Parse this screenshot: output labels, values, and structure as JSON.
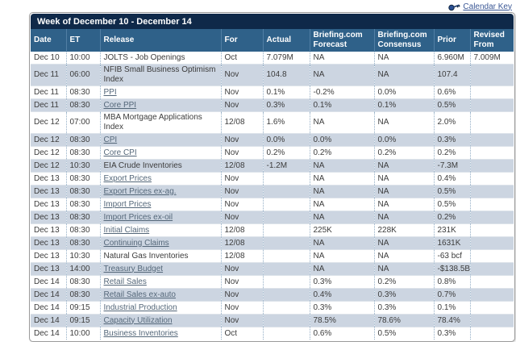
{
  "calendar_key": {
    "label": "Calendar Key"
  },
  "week_title": "Week of December 10 - December 14",
  "columns": [
    "Date",
    "ET",
    "Release",
    "For",
    "Actual",
    "Briefing.com Forecast",
    "Briefing.com Consensus",
    "Prior",
    "Revised From"
  ],
  "colors": {
    "title_bar_bg": "#0f2949",
    "header_bg": "#2f6189",
    "alt_row_bg": "#ccd5e1",
    "body_text": "#3c3c3c",
    "table_link": "#546779",
    "calendar_key_link": "#3a5795"
  },
  "rows": [
    {
      "date": "Dec 10",
      "et": "10:00",
      "release": "JOLTS - Job Openings",
      "link": false,
      "for": "Oct",
      "actual": "7.079M",
      "forecast": "NA",
      "consensus": "NA",
      "prior": "6.960M",
      "revised": "7.009M"
    },
    {
      "date": "Dec 11",
      "et": "06:00",
      "release": "NFIB Small Business Optimism Index",
      "link": false,
      "for": "Nov",
      "actual": "104.8",
      "forecast": "NA",
      "consensus": "NA",
      "prior": "107.4",
      "revised": ""
    },
    {
      "date": "Dec 11",
      "et": "08:30",
      "release": "PPI",
      "link": true,
      "for": "Nov",
      "actual": "0.1%",
      "forecast": "-0.2%",
      "consensus": "0.0%",
      "prior": "0.6%",
      "revised": ""
    },
    {
      "date": "Dec 11",
      "et": "08:30",
      "release": "Core PPI",
      "link": true,
      "for": "Nov",
      "actual": "0.3%",
      "forecast": "0.1%",
      "consensus": "0.1%",
      "prior": "0.5%",
      "revised": ""
    },
    {
      "date": "Dec 12",
      "et": "07:00",
      "release": "MBA Mortgage Applications Index",
      "link": false,
      "for": "12/08",
      "actual": "1.6%",
      "forecast": "NA",
      "consensus": "NA",
      "prior": "2.0%",
      "revised": ""
    },
    {
      "date": "Dec 12",
      "et": "08:30",
      "release": "CPI",
      "link": true,
      "for": "Nov",
      "actual": "0.0%",
      "forecast": "0.0%",
      "consensus": "0.0%",
      "prior": "0.3%",
      "revised": ""
    },
    {
      "date": "Dec 12",
      "et": "08:30",
      "release": "Core CPI",
      "link": true,
      "for": "Nov",
      "actual": "0.2%",
      "forecast": "0.2%",
      "consensus": "0.2%",
      "prior": "0.2%",
      "revised": ""
    },
    {
      "date": "Dec 12",
      "et": "10:30",
      "release": "EIA Crude Inventories",
      "link": false,
      "for": "12/08",
      "actual": "-1.2M",
      "forecast": "NA",
      "consensus": "NA",
      "prior": "-7.3M",
      "revised": ""
    },
    {
      "date": "Dec 13",
      "et": "08:30",
      "release": "Export Prices",
      "link": true,
      "for": "Nov",
      "actual": "",
      "forecast": "NA",
      "consensus": "NA",
      "prior": "0.4%",
      "revised": ""
    },
    {
      "date": "Dec 13",
      "et": "08:30",
      "release": "Export Prices ex-ag.",
      "link": true,
      "for": "Nov",
      "actual": "",
      "forecast": "NA",
      "consensus": "NA",
      "prior": "0.5%",
      "revised": ""
    },
    {
      "date": "Dec 13",
      "et": "08:30",
      "release": "Import Prices",
      "link": true,
      "for": "Nov",
      "actual": "",
      "forecast": "NA",
      "consensus": "NA",
      "prior": "0.5%",
      "revised": ""
    },
    {
      "date": "Dec 13",
      "et": "08:30",
      "release": "Import Prices ex-oil",
      "link": true,
      "for": "Nov",
      "actual": "",
      "forecast": "NA",
      "consensus": "NA",
      "prior": "0.2%",
      "revised": ""
    },
    {
      "date": "Dec 13",
      "et": "08:30",
      "release": "Initial Claims",
      "link": true,
      "for": "12/08",
      "actual": "",
      "forecast": "225K",
      "consensus": "228K",
      "prior": "231K",
      "revised": ""
    },
    {
      "date": "Dec 13",
      "et": "08:30",
      "release": "Continuing Claims",
      "link": true,
      "for": "12/08",
      "actual": "",
      "forecast": "NA",
      "consensus": "NA",
      "prior": "1631K",
      "revised": ""
    },
    {
      "date": "Dec 13",
      "et": "10:30",
      "release": "Natural Gas Inventories",
      "link": false,
      "for": "12/08",
      "actual": "",
      "forecast": "NA",
      "consensus": "NA",
      "prior": "-63 bcf",
      "revised": ""
    },
    {
      "date": "Dec 13",
      "et": "14:00",
      "release": "Treasury Budget",
      "link": true,
      "for": "Nov",
      "actual": "",
      "forecast": "NA",
      "consensus": "NA",
      "prior": "-$138.5B",
      "revised": ""
    },
    {
      "date": "Dec 14",
      "et": "08:30",
      "release": "Retail Sales",
      "link": true,
      "for": "Nov",
      "actual": "",
      "forecast": "0.3%",
      "consensus": "0.2%",
      "prior": "0.8%",
      "revised": ""
    },
    {
      "date": "Dec 14",
      "et": "08:30",
      "release": "Retail Sales ex-auto",
      "link": true,
      "for": "Nov",
      "actual": "",
      "forecast": "0.4%",
      "consensus": "0.3%",
      "prior": "0.7%",
      "revised": ""
    },
    {
      "date": "Dec 14",
      "et": "09:15",
      "release": "Industrial Production",
      "link": true,
      "for": "Nov",
      "actual": "",
      "forecast": "0.3%",
      "consensus": "0.3%",
      "prior": "0.1%",
      "revised": ""
    },
    {
      "date": "Dec 14",
      "et": "09:15",
      "release": "Capacity Utilization",
      "link": true,
      "for": "Nov",
      "actual": "",
      "forecast": "78.5%",
      "consensus": "78.6%",
      "prior": "78.4%",
      "revised": ""
    },
    {
      "date": "Dec 14",
      "et": "10:00",
      "release": "Business Inventories",
      "link": true,
      "for": "Oct",
      "actual": "",
      "forecast": "0.6%",
      "consensus": "0.5%",
      "prior": "0.3%",
      "revised": ""
    }
  ]
}
